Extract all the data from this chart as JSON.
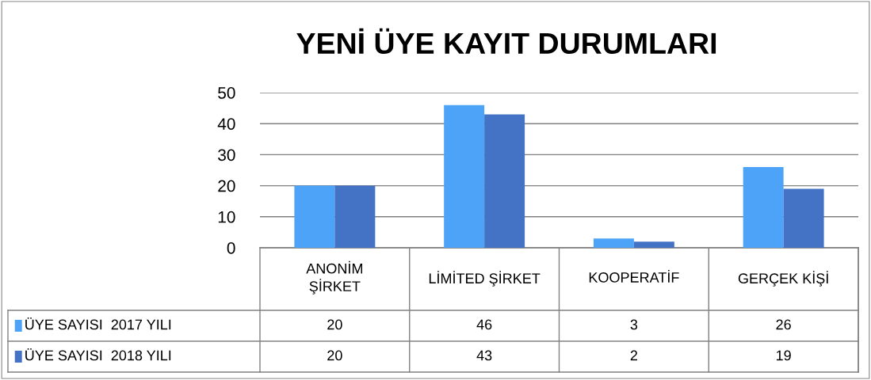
{
  "chart_data": {
    "type": "bar",
    "title": "YENİ ÜYE KAYIT DURUMLARI",
    "categories": [
      "ANONİM\nŞİRKET",
      "LİMİTED ŞİRKET",
      "KOOPERATİF",
      "GERÇEK KİŞİ"
    ],
    "series": [
      {
        "name": "ÜYE SAYISI  2017 YILI",
        "color": "#4da3f7",
        "values": [
          20,
          46,
          3,
          26
        ]
      },
      {
        "name": "ÜYE SAYISI  2018 YILI",
        "color": "#4472c4",
        "values": [
          20,
          43,
          2,
          19
        ]
      }
    ],
    "ylim": [
      0,
      50
    ],
    "yticks": [
      0,
      10,
      20,
      30,
      40,
      50
    ],
    "grid": "y",
    "data_labels": true,
    "legend": "bottom left"
  }
}
